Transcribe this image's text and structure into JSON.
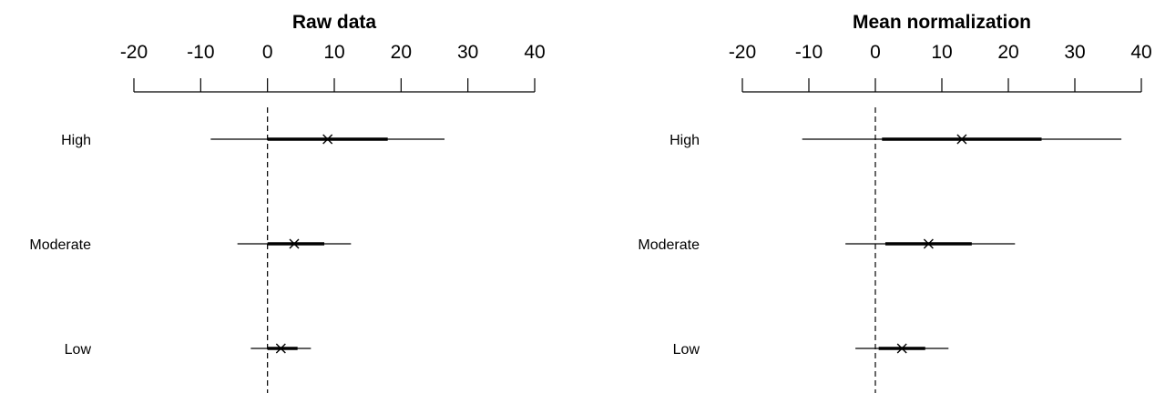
{
  "chart_data": [
    {
      "type": "forest",
      "title": "Raw data",
      "xlim": [
        -20,
        40
      ],
      "ticks": [
        -20,
        -10,
        0,
        10,
        20,
        30,
        40
      ],
      "tick_labels": [
        "-20",
        "-10",
        "0",
        "10",
        "20",
        "30",
        "40"
      ],
      "reference_line": 0,
      "categories": [
        "High",
        "Moderate",
        "Low"
      ],
      "estimates": [
        9,
        4,
        2
      ],
      "inner_intervals": [
        [
          0,
          18
        ],
        [
          0,
          8.5
        ],
        [
          0,
          4.5
        ]
      ],
      "outer_intervals": [
        [
          -8.5,
          26.5
        ],
        [
          -4.5,
          12.5
        ],
        [
          -2.5,
          6.5
        ]
      ]
    },
    {
      "type": "forest",
      "title": "Mean normalization",
      "xlim": [
        -20,
        40
      ],
      "ticks": [
        -20,
        -10,
        0,
        10,
        20,
        30,
        40
      ],
      "tick_labels": [
        "-20",
        "-10",
        "0",
        "10",
        "20",
        "30",
        "40"
      ],
      "reference_line": 0,
      "categories": [
        "High",
        "Moderate",
        "Low"
      ],
      "estimates": [
        13,
        8,
        4
      ],
      "inner_intervals": [
        [
          1,
          25
        ],
        [
          1.5,
          14.5
        ],
        [
          0.5,
          7.5
        ]
      ],
      "outer_intervals": [
        [
          -11,
          37
        ],
        [
          -4.5,
          21
        ],
        [
          -3,
          11
        ]
      ]
    }
  ]
}
